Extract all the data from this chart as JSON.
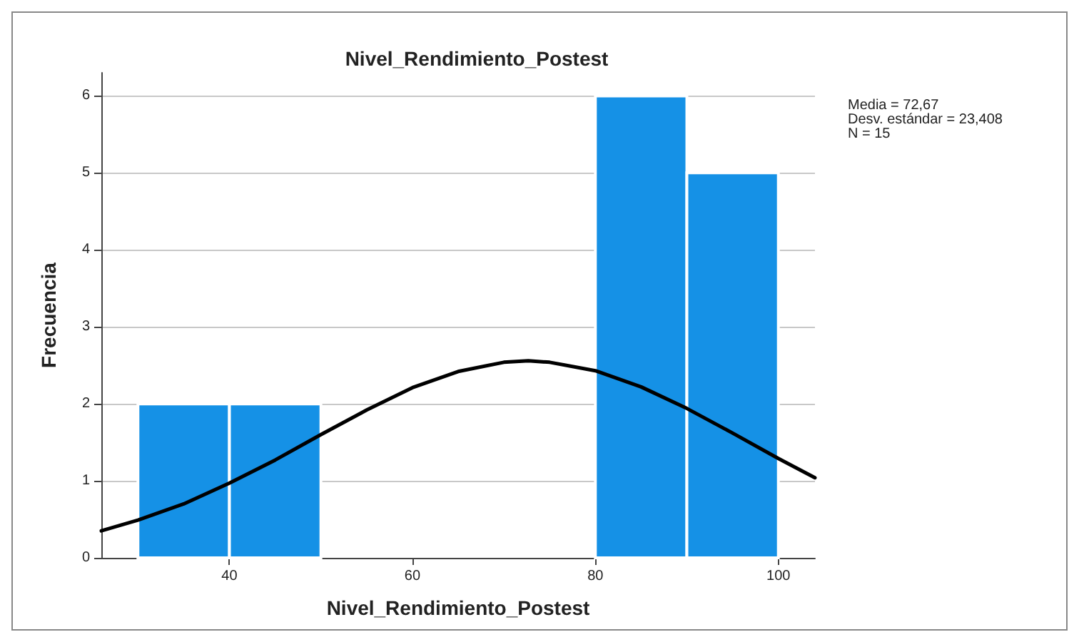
{
  "chart_data": {
    "type": "histogram",
    "title": "Nivel_Rendimiento_Postest",
    "xlabel": "Nivel_Rendimiento_Postest",
    "ylabel": "Frecuencia",
    "bins": [
      30,
      40,
      50,
      60,
      70,
      80,
      90,
      100
    ],
    "values": [
      2,
      2,
      0,
      0,
      0,
      6,
      5
    ],
    "color": "#1591e6",
    "series": [
      {
        "type": "line",
        "color": "#000000",
        "x": [
          26,
          30,
          35,
          40,
          45,
          50,
          55,
          60,
          65,
          70,
          72.67,
          75,
          80,
          85,
          90,
          95,
          100,
          104
        ],
        "values": [
          0.35,
          0.49,
          0.7,
          0.97,
          1.27,
          1.6,
          1.92,
          2.21,
          2.42,
          2.54,
          2.56,
          2.54,
          2.43,
          2.22,
          1.94,
          1.62,
          1.29,
          1.04
        ]
      }
    ],
    "xlim": [
      26,
      104
    ],
    "xticks": [
      40,
      60,
      80,
      100
    ],
    "ylim": [
      0,
      6.3
    ],
    "yticks": [
      0,
      1,
      2,
      3,
      4,
      5,
      6
    ],
    "grid": "y",
    "annotations": [
      "Media = 72,67",
      "Desv. estándar = 23,408",
      "N = 15"
    ]
  }
}
